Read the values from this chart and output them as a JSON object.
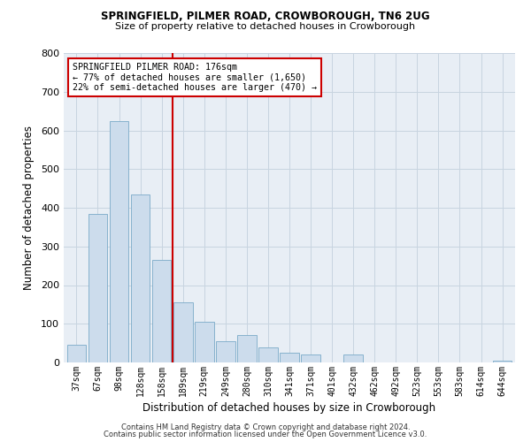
{
  "title1": "SPRINGFIELD, PILMER ROAD, CROWBOROUGH, TN6 2UG",
  "title2": "Size of property relative to detached houses in Crowborough",
  "xlabel": "Distribution of detached houses by size in Crowborough",
  "ylabel": "Number of detached properties",
  "categories": [
    "37sqm",
    "67sqm",
    "98sqm",
    "128sqm",
    "158sqm",
    "189sqm",
    "219sqm",
    "249sqm",
    "280sqm",
    "310sqm",
    "341sqm",
    "371sqm",
    "401sqm",
    "432sqm",
    "462sqm",
    "492sqm",
    "523sqm",
    "553sqm",
    "583sqm",
    "614sqm",
    "644sqm"
  ],
  "values": [
    45,
    385,
    625,
    435,
    265,
    155,
    105,
    55,
    70,
    40,
    25,
    20,
    0,
    20,
    0,
    0,
    0,
    0,
    0,
    0,
    5
  ],
  "bar_color": "#ccdcec",
  "bar_edge_color": "#7aaac8",
  "grid_color": "#c8d4e0",
  "bg_color": "#e8eef5",
  "vline_color": "#cc0000",
  "annotation_text": "SPRINGFIELD PILMER ROAD: 176sqm\n← 77% of detached houses are smaller (1,650)\n22% of semi-detached houses are larger (470) →",
  "annotation_box_color": "#cc0000",
  "ylim": [
    0,
    800
  ],
  "yticks": [
    0,
    100,
    200,
    300,
    400,
    500,
    600,
    700,
    800
  ],
  "footer1": "Contains HM Land Registry data © Crown copyright and database right 2024.",
  "footer2": "Contains public sector information licensed under the Open Government Licence v3.0."
}
